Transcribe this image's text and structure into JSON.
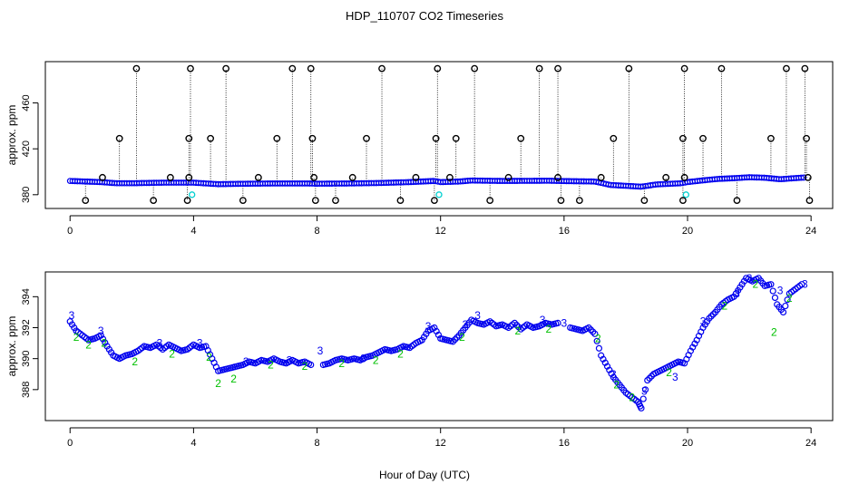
{
  "figure": {
    "title": "HDP_110707  CO2 Timeseries",
    "xlabel": "Hour of Day (UTC)"
  },
  "chart_data": [
    {
      "type": "scatter",
      "name": "raw-flags-panel",
      "ylabel": "approx. ppm",
      "xlim": [
        -0.8,
        24.7
      ],
      "ylim": [
        368,
        496
      ],
      "x_ticks": [
        0,
        4,
        8,
        12,
        16,
        20,
        24
      ],
      "y_ticks": [
        380,
        420,
        460
      ],
      "x_tick_labels": [
        "0",
        "4",
        "8",
        "12",
        "16",
        "20",
        "24"
      ],
      "y_tick_labels": [
        "380",
        "420",
        "460"
      ],
      "baseline": [
        [
          0.0,
          392.0
        ],
        [
          0.5,
          391.5
        ],
        [
          1.0,
          391.0
        ],
        [
          1.5,
          390.0
        ],
        [
          2.0,
          390.0
        ],
        [
          3.0,
          390.5
        ],
        [
          4.0,
          390.5
        ],
        [
          4.8,
          389.2
        ],
        [
          5.5,
          389.5
        ],
        [
          6.5,
          389.8
        ],
        [
          7.7,
          389.8
        ],
        [
          8.0,
          389.6
        ],
        [
          9.0,
          389.8
        ],
        [
          10.0,
          390.2
        ],
        [
          11.0,
          391.0
        ],
        [
          11.8,
          392.0
        ],
        [
          12.0,
          391.0
        ],
        [
          12.6,
          391.5
        ],
        [
          13.0,
          392.4
        ],
        [
          14.0,
          392.0
        ],
        [
          15.5,
          392.2
        ],
        [
          16.0,
          391.9
        ],
        [
          17.0,
          391.5
        ],
        [
          17.5,
          388.5
        ],
        [
          18.5,
          387.0
        ],
        [
          19.0,
          389.0
        ],
        [
          19.8,
          390.0
        ],
        [
          20.0,
          391.0
        ],
        [
          20.5,
          392.5
        ],
        [
          21.0,
          393.8
        ],
        [
          21.5,
          394.4
        ],
        [
          22.0,
          395.2
        ],
        [
          22.5,
          394.8
        ],
        [
          23.0,
          393.5
        ],
        [
          23.5,
          394.5
        ],
        [
          23.8,
          395.0
        ]
      ],
      "cyan_points": [
        [
          3.95,
          380
        ],
        [
          11.95,
          380
        ],
        [
          19.95,
          380
        ]
      ],
      "spikes": [
        [
          2.15,
          490
        ],
        [
          3.9,
          490
        ],
        [
          5.05,
          490
        ],
        [
          7.2,
          490
        ],
        [
          7.8,
          490
        ],
        [
          10.1,
          490
        ],
        [
          11.9,
          490
        ],
        [
          13.1,
          490
        ],
        [
          15.2,
          490
        ],
        [
          15.8,
          490
        ],
        [
          18.1,
          490
        ],
        [
          19.9,
          490
        ],
        [
          21.1,
          490
        ],
        [
          23.2,
          490
        ],
        [
          23.8,
          490
        ],
        [
          1.6,
          429
        ],
        [
          3.85,
          429
        ],
        [
          4.55,
          429
        ],
        [
          6.7,
          429
        ],
        [
          7.85,
          429
        ],
        [
          9.6,
          429
        ],
        [
          11.85,
          429
        ],
        [
          12.5,
          429
        ],
        [
          14.6,
          429
        ],
        [
          17.6,
          429
        ],
        [
          19.85,
          429
        ],
        [
          20.5,
          429
        ],
        [
          22.7,
          429
        ],
        [
          23.85,
          429
        ],
        [
          1.05,
          395
        ],
        [
          3.25,
          395
        ],
        [
          3.85,
          395
        ],
        [
          6.1,
          395
        ],
        [
          7.9,
          395
        ],
        [
          9.15,
          395
        ],
        [
          11.2,
          395
        ],
        [
          12.3,
          395
        ],
        [
          14.2,
          395
        ],
        [
          15.8,
          395
        ],
        [
          17.2,
          395
        ],
        [
          19.3,
          395
        ],
        [
          19.9,
          395
        ],
        [
          23.9,
          395
        ],
        [
          0.5,
          375
        ],
        [
          2.7,
          375
        ],
        [
          3.8,
          375
        ],
        [
          5.6,
          375
        ],
        [
          7.95,
          375
        ],
        [
          8.6,
          375
        ],
        [
          10.7,
          375
        ],
        [
          11.8,
          375
        ],
        [
          13.6,
          375
        ],
        [
          15.9,
          375
        ],
        [
          16.5,
          375
        ],
        [
          18.6,
          375
        ],
        [
          19.85,
          375
        ],
        [
          21.6,
          375
        ],
        [
          23.95,
          375
        ]
      ]
    },
    {
      "type": "scatter",
      "name": "filtered-panel",
      "ylabel": "approx. ppm",
      "xlim": [
        -0.8,
        24.7
      ],
      "ylim": [
        386.0,
        395.6
      ],
      "x_ticks": [
        0,
        4,
        8,
        12,
        16,
        20,
        24
      ],
      "y_ticks": [
        388,
        390,
        392,
        394
      ],
      "x_tick_labels": [
        "0",
        "4",
        "8",
        "12",
        "16",
        "20",
        "24"
      ],
      "y_tick_labels": [
        "388",
        "390",
        "392",
        "394"
      ],
      "series": [
        {
          "name": "main",
          "color": "#0000ee",
          "points": [
            [
              0.0,
              392.4
            ],
            [
              0.2,
              391.8
            ],
            [
              0.4,
              391.5
            ],
            [
              0.6,
              391.2
            ],
            [
              0.8,
              391.3
            ],
            [
              1.0,
              391.5
            ],
            [
              1.2,
              390.8
            ],
            [
              1.4,
              390.2
            ],
            [
              1.6,
              390.0
            ],
            [
              1.8,
              390.2
            ],
            [
              2.0,
              390.3
            ],
            [
              2.2,
              390.5
            ],
            [
              2.4,
              390.8
            ],
            [
              2.6,
              390.7
            ],
            [
              2.8,
              390.9
            ],
            [
              3.0,
              390.6
            ],
            [
              3.2,
              390.9
            ],
            [
              3.4,
              390.7
            ],
            [
              3.6,
              390.5
            ],
            [
              3.8,
              390.6
            ],
            [
              4.0,
              390.9
            ],
            [
              4.2,
              390.7
            ],
            [
              4.4,
              390.8
            ],
            [
              4.6,
              390.0
            ],
            [
              4.8,
              389.2
            ],
            [
              5.0,
              389.3
            ],
            [
              5.2,
              389.4
            ],
            [
              5.4,
              389.5
            ],
            [
              5.6,
              389.6
            ],
            [
              5.8,
              389.8
            ],
            [
              6.0,
              389.7
            ],
            [
              6.2,
              389.9
            ],
            [
              6.4,
              389.8
            ],
            [
              6.6,
              390.0
            ],
            [
              6.8,
              389.8
            ],
            [
              7.0,
              389.7
            ],
            [
              7.2,
              389.9
            ],
            [
              7.4,
              389.7
            ],
            [
              7.6,
              389.8
            ],
            [
              7.8,
              389.6
            ],
            [
              8.2,
              389.6
            ],
            [
              8.4,
              389.7
            ],
            [
              8.6,
              389.9
            ],
            [
              8.8,
              390.0
            ],
            [
              9.0,
              389.9
            ],
            [
              9.2,
              390.0
            ],
            [
              9.4,
              389.9
            ],
            [
              9.6,
              390.1
            ],
            [
              9.8,
              390.2
            ],
            [
              10.0,
              390.4
            ],
            [
              10.2,
              390.6
            ],
            [
              10.4,
              390.5
            ],
            [
              10.6,
              390.6
            ],
            [
              10.8,
              390.8
            ],
            [
              11.0,
              390.7
            ],
            [
              11.2,
              391.0
            ],
            [
              11.4,
              391.2
            ],
            [
              11.6,
              391.8
            ],
            [
              11.8,
              392.0
            ],
            [
              12.0,
              391.3
            ],
            [
              12.2,
              391.2
            ],
            [
              12.4,
              391.1
            ],
            [
              12.6,
              391.5
            ],
            [
              12.8,
              392.0
            ],
            [
              13.0,
              392.5
            ],
            [
              13.2,
              392.3
            ],
            [
              13.4,
              392.2
            ],
            [
              13.6,
              392.4
            ],
            [
              13.8,
              392.1
            ],
            [
              14.0,
              392.2
            ],
            [
              14.2,
              392.0
            ],
            [
              14.4,
              392.3
            ],
            [
              14.6,
              391.9
            ],
            [
              14.8,
              392.2
            ],
            [
              15.0,
              392.0
            ],
            [
              15.2,
              392.1
            ],
            [
              15.4,
              392.3
            ],
            [
              15.6,
              392.2
            ],
            [
              15.8,
              392.3
            ],
            [
              16.2,
              392.0
            ],
            [
              16.4,
              391.9
            ],
            [
              16.6,
              391.8
            ],
            [
              16.8,
              392.0
            ],
            [
              17.0,
              391.6
            ],
            [
              17.2,
              390.2
            ],
            [
              17.4,
              389.5
            ],
            [
              17.6,
              388.8
            ],
            [
              17.8,
              388.3
            ],
            [
              18.0,
              387.8
            ],
            [
              18.2,
              387.5
            ],
            [
              18.4,
              387.2
            ],
            [
              18.5,
              386.8
            ],
            [
              18.7,
              388.6
            ],
            [
              18.9,
              389.0
            ],
            [
              19.1,
              389.2
            ],
            [
              19.3,
              389.4
            ],
            [
              19.5,
              389.6
            ],
            [
              19.7,
              389.8
            ],
            [
              19.9,
              389.7
            ],
            [
              20.1,
              390.5
            ],
            [
              20.3,
              391.2
            ],
            [
              20.5,
              392.0
            ],
            [
              20.7,
              392.6
            ],
            [
              20.9,
              393.0
            ],
            [
              21.1,
              393.5
            ],
            [
              21.3,
              393.8
            ],
            [
              21.5,
              394.0
            ],
            [
              21.7,
              394.6
            ],
            [
              21.9,
              395.2
            ],
            [
              22.1,
              395.0
            ],
            [
              22.3,
              395.2
            ],
            [
              22.5,
              394.7
            ],
            [
              22.7,
              394.8
            ],
            [
              22.9,
              393.5
            ],
            [
              23.1,
              393.0
            ],
            [
              23.3,
              394.2
            ],
            [
              23.5,
              394.5
            ],
            [
              23.7,
              394.8
            ]
          ]
        },
        {
          "name": "green-2",
          "color": "#00c000",
          "glyph": "2",
          "points": [
            [
              0.2,
              391.4
            ],
            [
              0.6,
              390.9
            ],
            [
              1.1,
              391.0
            ],
            [
              2.1,
              389.8
            ],
            [
              3.3,
              390.3
            ],
            [
              4.5,
              390.1
            ],
            [
              4.8,
              388.4
            ],
            [
              5.3,
              388.7
            ],
            [
              6.5,
              389.6
            ],
            [
              7.6,
              389.5
            ],
            [
              8.8,
              389.7
            ],
            [
              9.9,
              389.9
            ],
            [
              10.7,
              390.3
            ],
            [
              12.7,
              391.4
            ],
            [
              14.5,
              391.8
            ],
            [
              15.5,
              391.9
            ],
            [
              17.1,
              391.3
            ],
            [
              17.7,
              388.3
            ],
            [
              18.2,
              387.5
            ],
            [
              19.4,
              389.1
            ],
            [
              21.2,
              393.4
            ],
            [
              22.2,
              394.8
            ],
            [
              22.8,
              391.7
            ],
            [
              23.3,
              393.9
            ]
          ]
        },
        {
          "name": "blue-3",
          "color": "#0000ee",
          "glyph": "3",
          "points": [
            [
              0.05,
              392.8
            ],
            [
              1.0,
              391.8
            ],
            [
              2.9,
              391.0
            ],
            [
              4.2,
              391.0
            ],
            [
              5.7,
              389.8
            ],
            [
              7.1,
              389.9
            ],
            [
              8.1,
              390.5
            ],
            [
              9.5,
              390.0
            ],
            [
              11.6,
              392.1
            ],
            [
              12.8,
              392.2
            ],
            [
              13.2,
              392.8
            ],
            [
              15.3,
              392.5
            ],
            [
              16.0,
              392.3
            ],
            [
              17.6,
              389.0
            ],
            [
              18.6,
              387.9
            ],
            [
              19.6,
              388.8
            ],
            [
              20.5,
              392.4
            ],
            [
              21.6,
              394.2
            ],
            [
              22.0,
              395.2
            ],
            [
              23.0,
              394.4
            ],
            [
              23.8,
              394.8
            ]
          ]
        }
      ]
    }
  ]
}
